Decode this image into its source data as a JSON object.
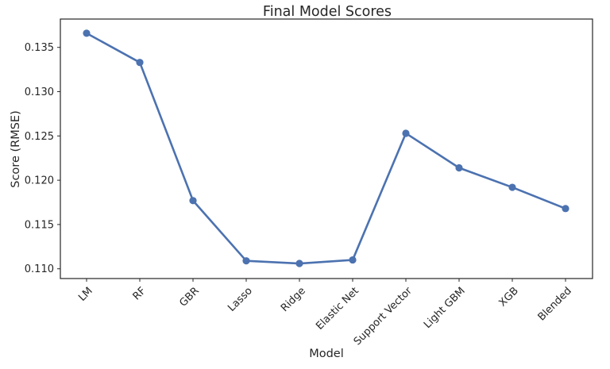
{
  "chart_data": {
    "type": "line",
    "title": "Final Model Scores",
    "xlabel": "Model",
    "ylabel": "Score (RMSE)",
    "categories": [
      "LM",
      "RF",
      "GBR",
      "Lasso",
      "Ridge",
      "Elastic Net",
      "Support Vector",
      "Light GBM",
      "XGB",
      "Blended"
    ],
    "series": [
      {
        "values": [
          0.1366,
          0.1333,
          0.1177,
          0.1109,
          0.1106,
          0.111,
          0.1253,
          0.1214,
          0.1192,
          0.1168
        ]
      }
    ],
    "yticks": [
      0.11,
      0.115,
      0.12,
      0.125,
      0.13,
      0.135
    ],
    "ytick_labels": [
      "0.110",
      "0.115",
      "0.120",
      "0.125",
      "0.130",
      "0.135"
    ],
    "ylim": [
      0.1089,
      0.1382
    ],
    "grid": false,
    "colors": {
      "line": "#4c72b0",
      "marker": "#4c72b0",
      "frame": "#262626",
      "text": "#262626"
    }
  }
}
